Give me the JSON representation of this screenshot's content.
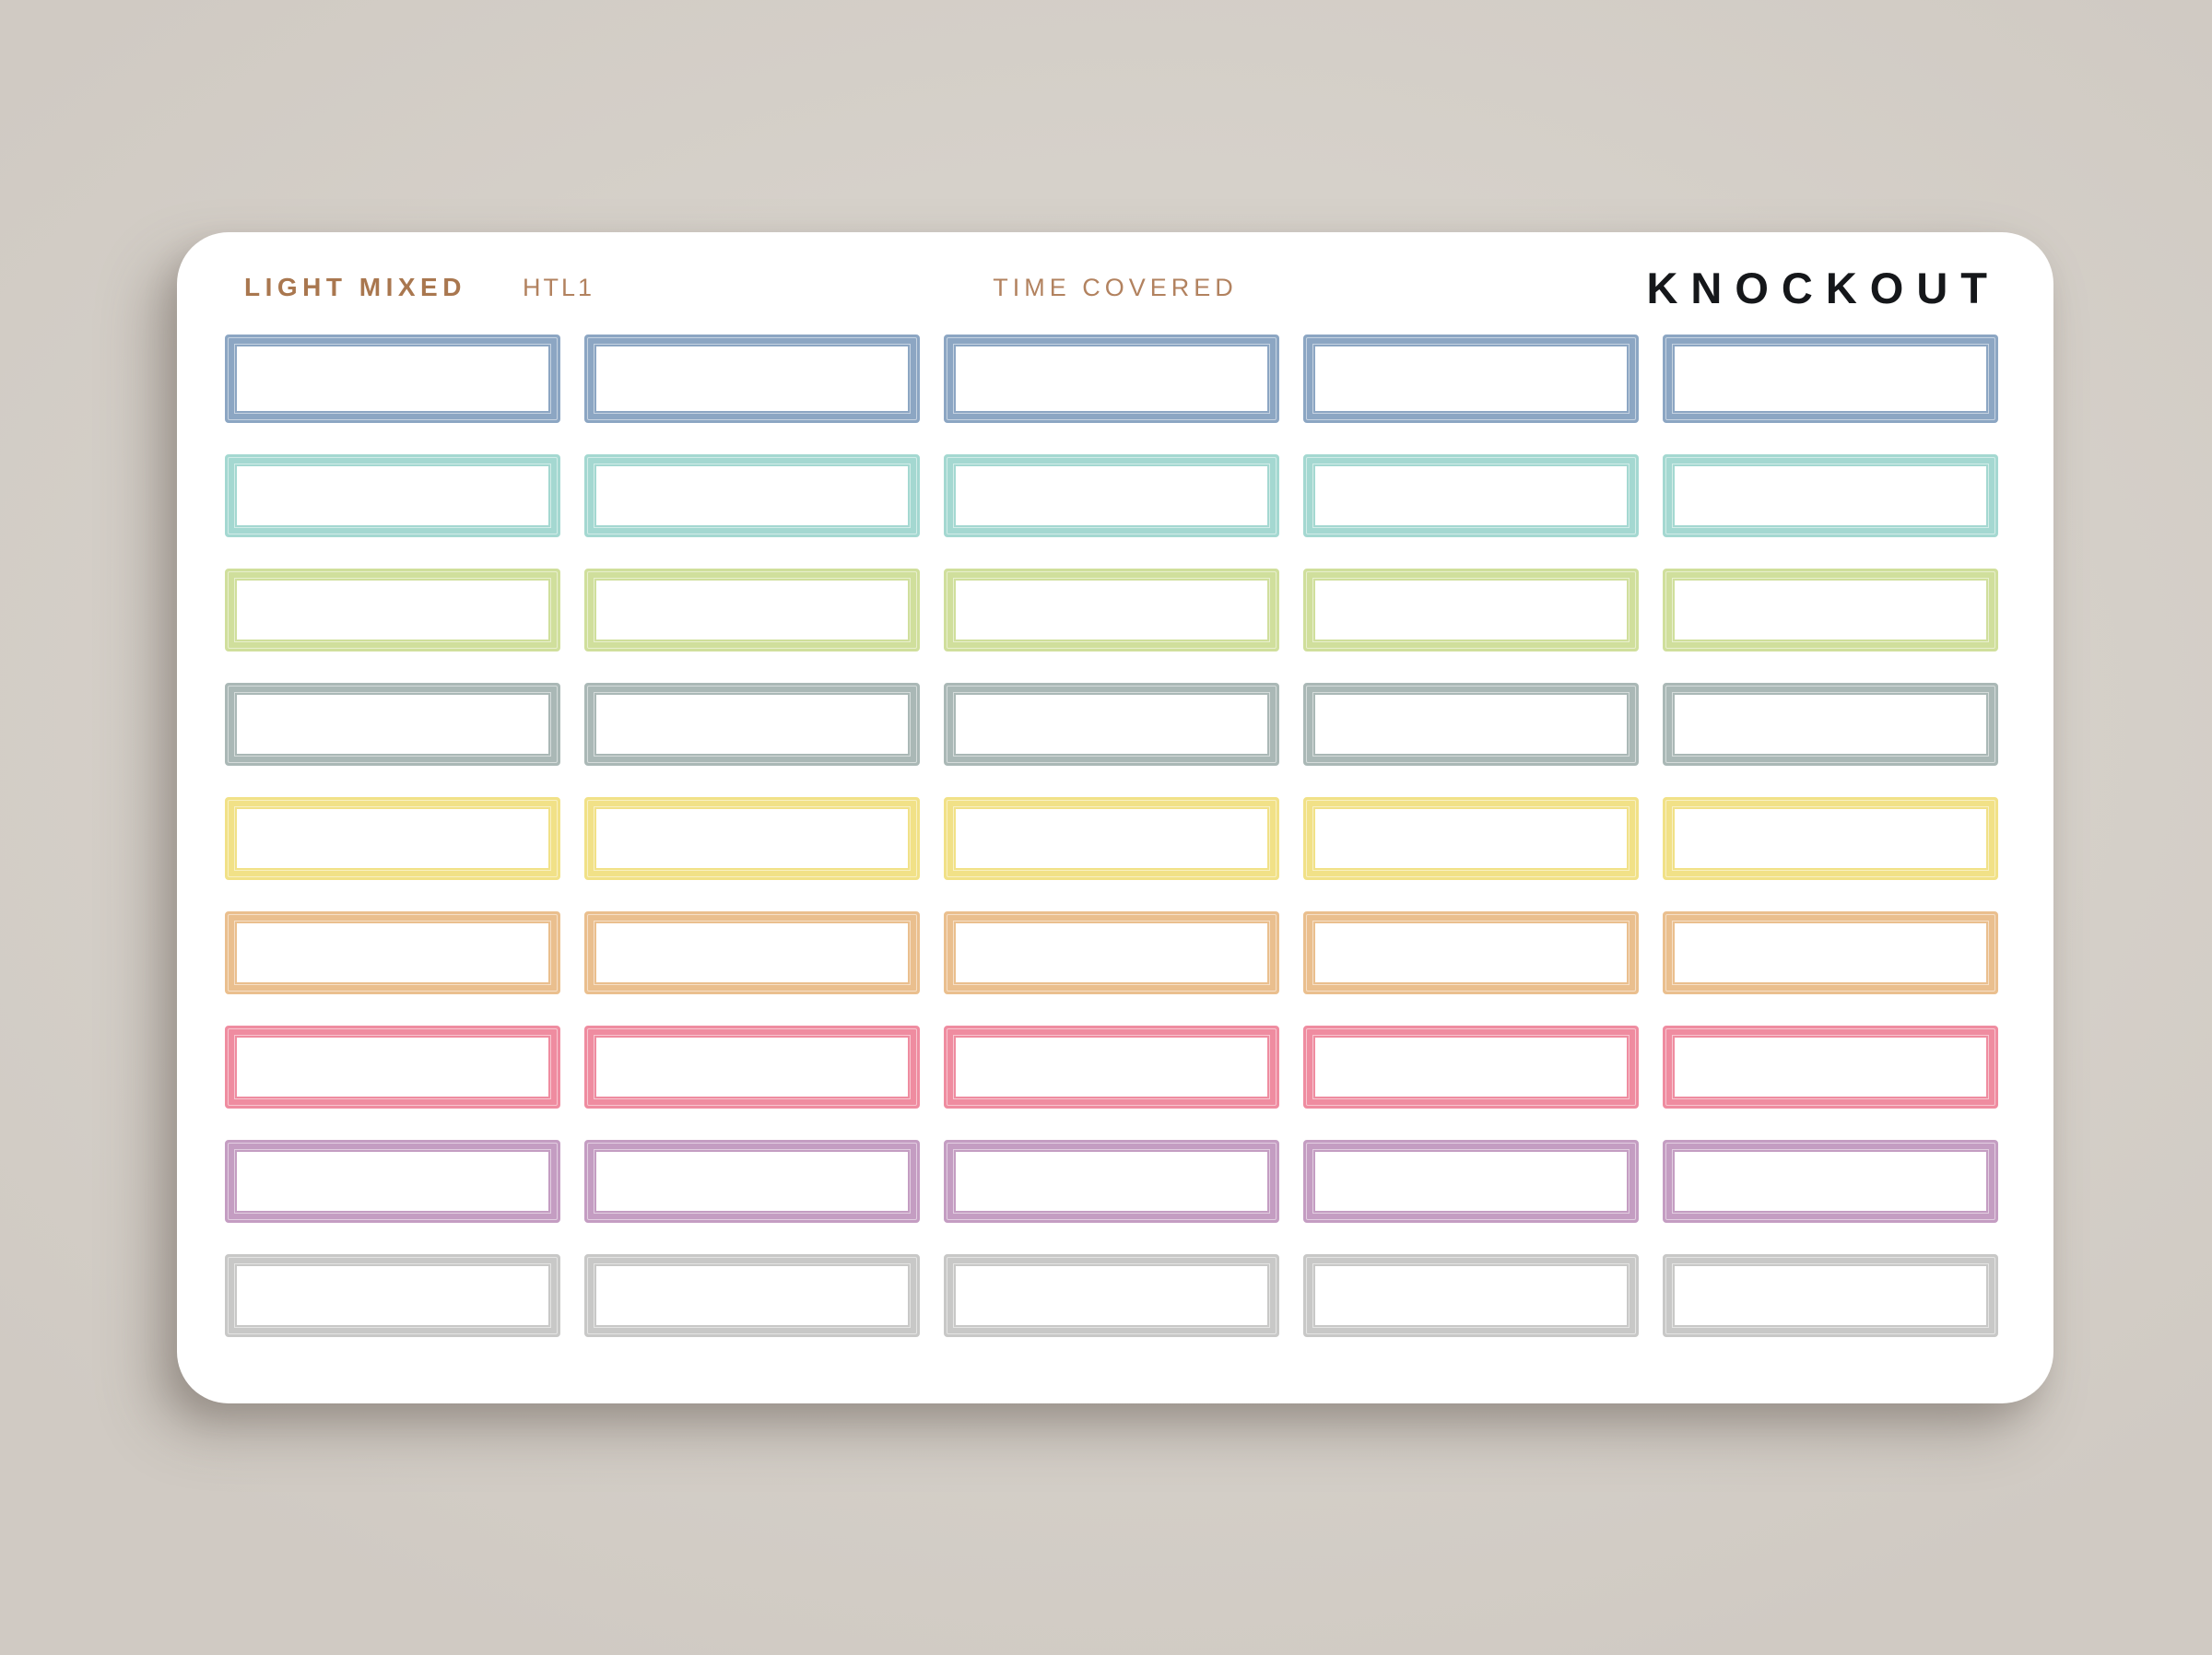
{
  "page": {
    "background_color": "#d6d1ca"
  },
  "sheet": {
    "background_color": "#ffffff",
    "header": {
      "collection": "LIGHT MIXED",
      "collection_color": "#a9774f",
      "sku": "HTL1",
      "product": "TIME COVERED",
      "meta_color": "#b2825f",
      "brand": "KNOCKOUT",
      "brand_color": "#15171a"
    },
    "grid": {
      "columns": 5,
      "sticker_fill": "#ffffff",
      "rows": [
        {
          "name": "blue",
          "color": "#8ca6c3"
        },
        {
          "name": "teal",
          "color": "#a4d8d1"
        },
        {
          "name": "green",
          "color": "#d0df9c"
        },
        {
          "name": "sage",
          "color": "#aab8b6"
        },
        {
          "name": "yellow",
          "color": "#f1e187"
        },
        {
          "name": "orange",
          "color": "#eabf8e"
        },
        {
          "name": "pink",
          "color": "#ef8ca0"
        },
        {
          "name": "purple",
          "color": "#c49dc2"
        },
        {
          "name": "gray",
          "color": "#c8c8c7"
        }
      ]
    }
  }
}
